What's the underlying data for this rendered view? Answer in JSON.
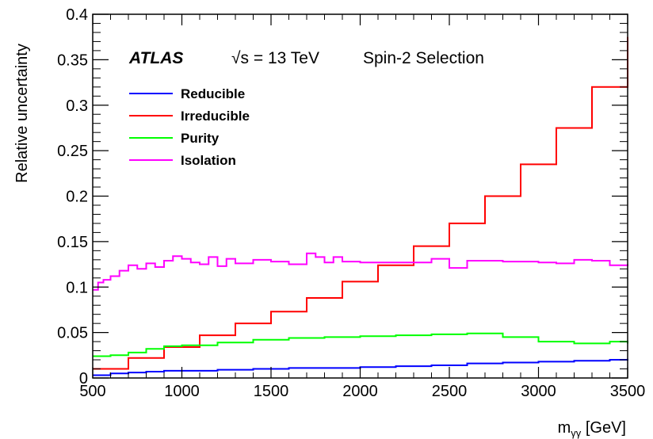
{
  "chart_data": {
    "type": "line",
    "xlabel": "m",
    "xlabel_sub": "γγ",
    "xlabel_unit": " [GeV]",
    "ylabel": "Relative uncertainty",
    "xlim": [
      500,
      3500
    ],
    "ylim": [
      0,
      0.4
    ],
    "x_ticks": [
      "500",
      "1000",
      "1500",
      "2000",
      "2500",
      "3000",
      "3500"
    ],
    "y_ticks": [
      "0",
      "0.05",
      "0.1",
      "0.15",
      "0.2",
      "0.25",
      "0.3",
      "0.35",
      "0.4"
    ],
    "experiment_label": "ATLAS",
    "energy_root": "√",
    "energy_text": "s = 13 TeV",
    "selection_text": "Spin-2 Selection",
    "legend_position": "top-left",
    "series": [
      {
        "name": "Reducible",
        "color": "#0000ff",
        "x": [
          500,
          600,
          700,
          800,
          900,
          1000,
          1200,
          1400,
          1600,
          1800,
          2000,
          2200,
          2400,
          2600,
          2800,
          3000,
          3200,
          3400,
          3500
        ],
        "y": [
          0.003,
          0.005,
          0.006,
          0.007,
          0.008,
          0.008,
          0.009,
          0.01,
          0.011,
          0.011,
          0.012,
          0.013,
          0.014,
          0.016,
          0.017,
          0.018,
          0.019,
          0.02,
          0.021
        ]
      },
      {
        "name": "Irreducible",
        "color": "#ff0000",
        "x": [
          500,
          700,
          900,
          1100,
          1300,
          1500,
          1700,
          1900,
          2100,
          2300,
          2500,
          2700,
          2900,
          3100,
          3300,
          3500
        ],
        "y": [
          0.01,
          0.022,
          0.034,
          0.047,
          0.06,
          0.073,
          0.088,
          0.106,
          0.124,
          0.145,
          0.17,
          0.2,
          0.235,
          0.275,
          0.32,
          0.375
        ]
      },
      {
        "name": "Purity",
        "color": "#00ff00",
        "x": [
          500,
          600,
          700,
          800,
          900,
          1000,
          1200,
          1400,
          1600,
          1800,
          2000,
          2200,
          2400,
          2600,
          2800,
          3000,
          3200,
          3400,
          3500
        ],
        "y": [
          0.024,
          0.025,
          0.028,
          0.032,
          0.035,
          0.036,
          0.039,
          0.042,
          0.044,
          0.045,
          0.046,
          0.047,
          0.048,
          0.049,
          0.045,
          0.04,
          0.038,
          0.04,
          0.038
        ]
      },
      {
        "name": "Isolation",
        "color": "#ff00ff",
        "x": [
          500,
          530,
          560,
          600,
          650,
          700,
          750,
          800,
          850,
          900,
          950,
          1000,
          1050,
          1100,
          1150,
          1200,
          1250,
          1300,
          1400,
          1500,
          1600,
          1700,
          1750,
          1800,
          1850,
          1900,
          2000,
          2100,
          2200,
          2300,
          2400,
          2500,
          2600,
          2800,
          3000,
          3100,
          3200,
          3300,
          3400,
          3500
        ],
        "y": [
          0.097,
          0.105,
          0.108,
          0.112,
          0.118,
          0.124,
          0.12,
          0.126,
          0.122,
          0.129,
          0.134,
          0.131,
          0.127,
          0.125,
          0.133,
          0.123,
          0.131,
          0.126,
          0.13,
          0.128,
          0.125,
          0.137,
          0.133,
          0.127,
          0.133,
          0.128,
          0.127,
          0.127,
          0.127,
          0.127,
          0.131,
          0.121,
          0.129,
          0.128,
          0.127,
          0.126,
          0.13,
          0.129,
          0.124,
          0.125
        ]
      }
    ]
  }
}
